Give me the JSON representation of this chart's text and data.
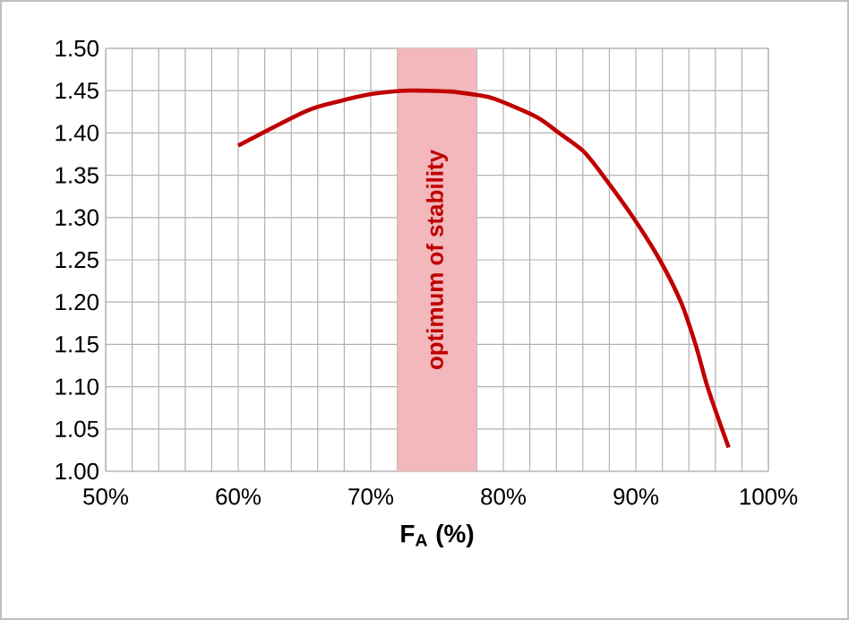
{
  "chart_data": {
    "type": "line",
    "xlabel": "F$_{A}$ (%)",
    "x": [
      60,
      65,
      67.5,
      70,
      72.5,
      74,
      76,
      78,
      79.4,
      82.5,
      84.2,
      86,
      87.5,
      89.8,
      91.8,
      93.4,
      94.5,
      95.4,
      96.5,
      97
    ],
    "series": [
      {
        "color": "#c00000",
        "values": [
          1.385,
          1.425,
          1.437,
          1.446,
          1.45,
          1.45,
          1.449,
          1.445,
          1.44,
          1.419,
          1.4,
          1.379,
          1.35,
          1.3,
          1.25,
          1.2,
          1.15,
          1.1,
          1.05,
          1.028
        ]
      }
    ],
    "xlim": [
      50,
      100
    ],
    "xticks": [
      {
        "value": 50,
        "label": "50%"
      },
      {
        "value": 52,
        "label": null
      },
      {
        "value": 54,
        "label": null
      },
      {
        "value": 56,
        "label": null
      },
      {
        "value": 58,
        "label": null
      },
      {
        "value": 60,
        "label": "60%"
      },
      {
        "value": 62,
        "label": null
      },
      {
        "value": 64,
        "label": null
      },
      {
        "value": 66,
        "label": null
      },
      {
        "value": 68,
        "label": null
      },
      {
        "value": 70,
        "label": "70%"
      },
      {
        "value": 72,
        "label": null
      },
      {
        "value": 74,
        "label": null
      },
      {
        "value": 76,
        "label": null
      },
      {
        "value": 78,
        "label": null
      },
      {
        "value": 80,
        "label": "80%"
      },
      {
        "value": 82,
        "label": null
      },
      {
        "value": 84,
        "label": null
      },
      {
        "value": 86,
        "label": null
      },
      {
        "value": 88,
        "label": null
      },
      {
        "value": 90,
        "label": "90%"
      },
      {
        "value": 92,
        "label": null
      },
      {
        "value": 94,
        "label": null
      },
      {
        "value": 96,
        "label": null
      },
      {
        "value": 98,
        "label": null
      },
      {
        "value": 100,
        "label": "100%"
      }
    ],
    "ylim": [
      1.0,
      1.5
    ],
    "yticks": [
      {
        "value": 1.0,
        "label": "1.00"
      },
      {
        "value": 1.05,
        "label": "1.05"
      },
      {
        "value": 1.1,
        "label": "1.10"
      },
      {
        "value": 1.15,
        "label": "1.15"
      },
      {
        "value": 1.2,
        "label": "1.20"
      },
      {
        "value": 1.25,
        "label": "1.25"
      },
      {
        "value": 1.3,
        "label": "1.30"
      },
      {
        "value": 1.35,
        "label": "1.35"
      },
      {
        "value": 1.4,
        "label": "1.40"
      },
      {
        "value": 1.45,
        "label": "1.45"
      },
      {
        "value": 1.5,
        "label": "1.50"
      }
    ],
    "grid": true,
    "marker": "none",
    "line_style": "solid",
    "bands": [
      {
        "axis": "x",
        "from": 72,
        "to": 78,
        "label": "optimum of stability",
        "color": "#f2b8bc"
      }
    ]
  }
}
